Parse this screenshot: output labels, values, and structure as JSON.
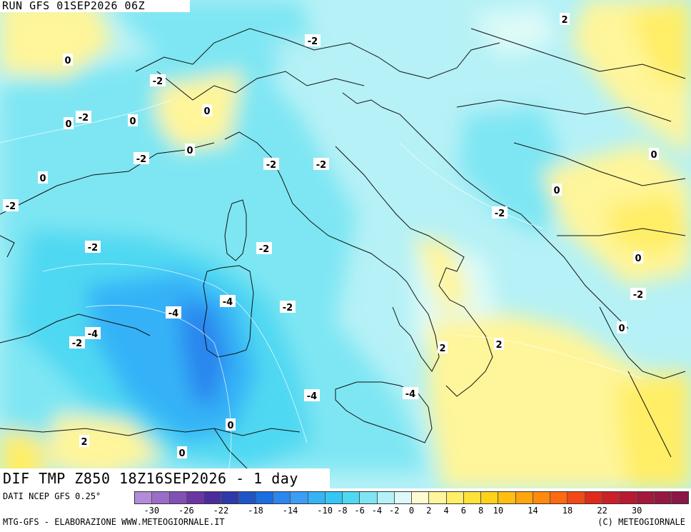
{
  "header": {
    "run": "RUN GFS 01SEP2026 06Z"
  },
  "map_title": "DIF TMP Z850 18Z16SEP2026 - 1 day",
  "source": "DATI NCEP GFS 0.25°",
  "footer": {
    "left": "MTG-GFS - ELABORAZIONE WWW.METEOGIORNALE.IT",
    "right": "(C) METEOGIORNALE"
  },
  "legend": {
    "ticks": [
      "-30",
      "-26",
      "-22",
      "-18",
      "-14",
      "-10",
      "-8",
      "-6",
      "-4",
      "-2",
      "0",
      "2",
      "4",
      "6",
      "8",
      "10",
      "14",
      "18",
      "22",
      "30"
    ],
    "colors": [
      "#b38cd9",
      "#9c6dc8",
      "#8150b5",
      "#6b35a3",
      "#4c2c9c",
      "#2d3aa8",
      "#1e55c6",
      "#1a6ee0",
      "#2b86ee",
      "#3a9ef5",
      "#36b2f7",
      "#35c6f4",
      "#4fd8f2",
      "#7ee6f3",
      "#b5f1f6",
      "#ddfaf8",
      "#fffbd0",
      "#fff59a",
      "#ffee66",
      "#ffe23a",
      "#ffd21a",
      "#ffbe10",
      "#ffa50e",
      "#ff8a0c",
      "#ff6a10",
      "#f24a16",
      "#e02a1c",
      "#cc1f28",
      "#b81a32",
      "#a5183a",
      "#951840",
      "#8a1745"
    ]
  },
  "contour_labels": [
    {
      "text": "-2"
    },
    {
      "text": "-2"
    },
    {
      "text": "-2"
    },
    {
      "text": "-2"
    },
    {
      "text": "-2"
    },
    {
      "text": "-2"
    },
    {
      "text": "-2"
    },
    {
      "text": "-2"
    },
    {
      "text": "-2"
    },
    {
      "text": "-2"
    },
    {
      "text": "-2"
    },
    {
      "text": "-2"
    },
    {
      "text": "-2"
    },
    {
      "text": "-4"
    },
    {
      "text": "-4"
    },
    {
      "text": "-4"
    },
    {
      "text": "-4"
    },
    {
      "text": "-4"
    },
    {
      "text": "0"
    },
    {
      "text": "0"
    },
    {
      "text": "0"
    },
    {
      "text": "0"
    },
    {
      "text": "0"
    },
    {
      "text": "0"
    },
    {
      "text": "0"
    },
    {
      "text": "0"
    },
    {
      "text": "0"
    },
    {
      "text": "0"
    },
    {
      "text": "0"
    },
    {
      "text": "0"
    },
    {
      "text": "2"
    },
    {
      "text": "2"
    },
    {
      "text": "2"
    },
    {
      "text": "2"
    },
    {
      "text": "2"
    }
  ]
}
